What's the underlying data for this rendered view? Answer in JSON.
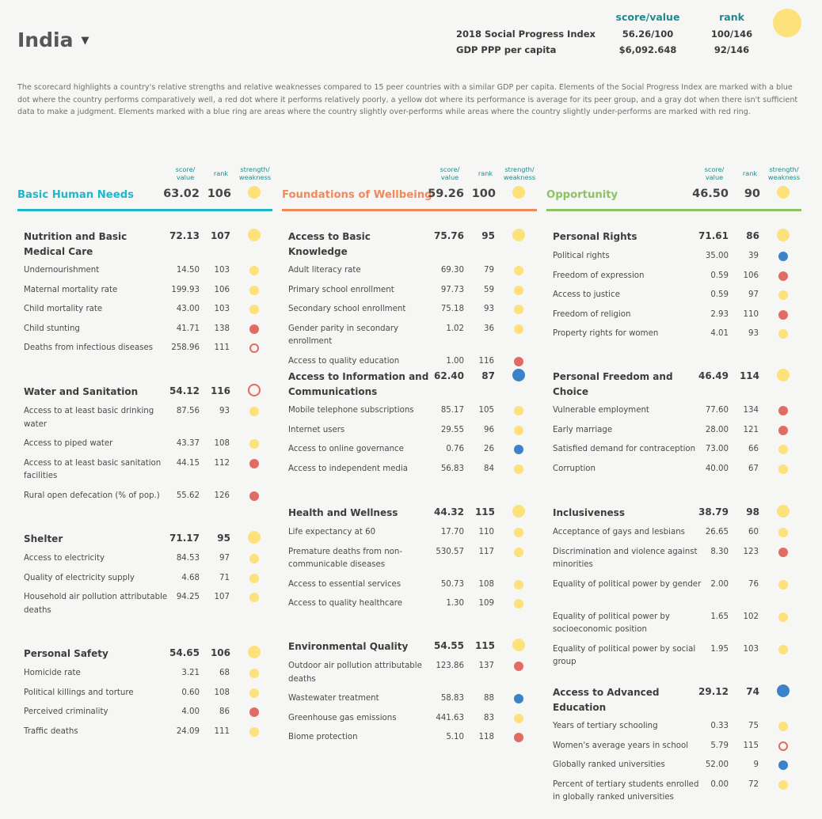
{
  "country": "India",
  "summary": {
    "head_value": "score/value",
    "head_rank": "rank",
    "rows": [
      {
        "label": "2018 Social Progress Index",
        "value": "56.26/100",
        "rank": "100/146"
      },
      {
        "label": "GDP PPP per capita",
        "value": "$6,092.648",
        "rank": "92/146"
      }
    ],
    "overall_color": "#fde17a"
  },
  "description": "The scorecard highlights a country's relative strengths and relative weaknesses compared to 15 peer countries with a similar GDP per capita. Elements of the Social Progress Index are marked with a blue dot where the country performs comparatively well, a red dot where it performs relatively poorly, a yellow dot where its performance is average for its peer group, and a gray dot when there isn't sufficient data to make a judgment. Elements marked with a blue ring are areas where the country slightly over-performs while areas where the country slightly under-performs are marked with red ring.",
  "colors": {
    "yellow": "#fde17a",
    "red": "#e06c64",
    "blue": "#3b82c9"
  },
  "mini_headers": {
    "sv1": "score/",
    "sv2": "value",
    "rank": "rank",
    "sw1": "strength/",
    "sw2": "weakness"
  },
  "dimensions": [
    {
      "name": "Basic Human Needs",
      "color": "#1fb8c9",
      "score": "63.02",
      "rank": "106",
      "status": "yellow",
      "components": [
        {
          "title": "Nutrition and Basic Medical Care",
          "score": "72.13",
          "rank": "107",
          "status": "yellow",
          "indicators": [
            {
              "name": "Undernourishment",
              "value": "14.50",
              "rank": "103",
              "status": "yellow"
            },
            {
              "name": "Maternal mortality rate",
              "value": "199.93",
              "rank": "106",
              "status": "yellow"
            },
            {
              "name": "Child mortality rate",
              "value": "43.00",
              "rank": "103",
              "status": "yellow"
            },
            {
              "name": "Child stunting",
              "value": "41.71",
              "rank": "138",
              "status": "red"
            },
            {
              "name": "Deaths from infectious diseases",
              "value": "258.96",
              "rank": "111",
              "status": "red-ring"
            }
          ]
        },
        {
          "title": "Water and Sanitation",
          "score": "54.12",
          "rank": "116",
          "status": "red-ring",
          "indicators": [
            {
              "name": "Access to at least basic drinking water",
              "value": "87.56",
              "rank": "93",
              "status": "yellow"
            },
            {
              "name": "Access to piped water",
              "value": "43.37",
              "rank": "108",
              "status": "yellow"
            },
            {
              "name": "Access to at least basic sanitation facilities",
              "value": "44.15",
              "rank": "112",
              "status": "red"
            },
            {
              "name": "Rural open defecation (% of pop.)",
              "value": "55.62",
              "rank": "126",
              "status": "red"
            }
          ]
        },
        {
          "title": "Shelter",
          "score": "71.17",
          "rank": "95",
          "status": "yellow",
          "indicators": [
            {
              "name": "Access to electricity",
              "value": "84.53",
              "rank": "97",
              "status": "yellow"
            },
            {
              "name": "Quality of electricity supply",
              "value": "4.68",
              "rank": "71",
              "status": "yellow"
            },
            {
              "name": "Household air pollution attributable deaths",
              "value": "94.25",
              "rank": "107",
              "status": "yellow"
            }
          ]
        },
        {
          "title": "Personal Safety",
          "score": "54.65",
          "rank": "106",
          "status": "yellow",
          "indicators": [
            {
              "name": "Homicide rate",
              "value": "3.21",
              "rank": "68",
              "status": "yellow"
            },
            {
              "name": "Political killings and torture",
              "value": "0.60",
              "rank": "108",
              "status": "yellow"
            },
            {
              "name": "Perceived criminality",
              "value": "4.00",
              "rank": "86",
              "status": "red"
            },
            {
              "name": "Traffic deaths",
              "value": "24.09",
              "rank": "111",
              "status": "yellow"
            }
          ]
        }
      ]
    },
    {
      "name": "Foundations of Wellbeing",
      "color": "#f08a5d",
      "score": "59.26",
      "rank": "100",
      "status": "yellow",
      "components": [
        {
          "title": "Access to Basic Knowledge",
          "score": "75.76",
          "rank": "95",
          "status": "yellow",
          "indicators": [
            {
              "name": "Adult literacy rate",
              "value": "69.30",
              "rank": "79",
              "status": "yellow"
            },
            {
              "name": "Primary school enrollment",
              "value": "97.73",
              "rank": "59",
              "status": "yellow"
            },
            {
              "name": "Secondary school enrollment",
              "value": "75.18",
              "rank": "93",
              "status": "yellow"
            },
            {
              "name": "Gender parity in secondary enrollment",
              "value": "1.02",
              "rank": "36",
              "status": "yellow"
            },
            {
              "name": "Access to quality education",
              "value": "1.00",
              "rank": "116",
              "status": "red"
            }
          ]
        },
        {
          "title": "Access to Information and Communications",
          "score": "62.40",
          "rank": "87",
          "status": "blue",
          "indicators": [
            {
              "name": "Mobile telephone subscriptions",
              "value": "85.17",
              "rank": "105",
              "status": "yellow"
            },
            {
              "name": "Internet users",
              "value": "29.55",
              "rank": "96",
              "status": "yellow"
            },
            {
              "name": "Access to online governance",
              "value": "0.76",
              "rank": "26",
              "status": "blue"
            },
            {
              "name": "Access to independent media",
              "value": "56.83",
              "rank": "84",
              "status": "yellow"
            }
          ]
        },
        {
          "title": "Health and Wellness",
          "score": "44.32",
          "rank": "115",
          "status": "yellow",
          "indicators": [
            {
              "name": "Life expectancy at 60",
              "value": "17.70",
              "rank": "110",
              "status": "yellow"
            },
            {
              "name": "Premature deaths from non-communicable diseases",
              "value": "530.57",
              "rank": "117",
              "status": "yellow"
            },
            {
              "name": "Access to essential services",
              "value": "50.73",
              "rank": "108",
              "status": "yellow"
            },
            {
              "name": "Access to quality healthcare",
              "value": "1.30",
              "rank": "109",
              "status": "yellow"
            }
          ]
        },
        {
          "title": "Environmental Quality",
          "score": "54.55",
          "rank": "115",
          "status": "yellow",
          "indicators": [
            {
              "name": "Outdoor air pollution attributable deaths",
              "value": "123.86",
              "rank": "137",
              "status": "red"
            },
            {
              "name": "Wastewater treatment",
              "value": "58.83",
              "rank": "88",
              "status": "blue"
            },
            {
              "name": "Greenhouse gas emissions",
              "value": "441.63",
              "rank": "83",
              "status": "yellow"
            },
            {
              "name": "Biome protection",
              "value": "5.10",
              "rank": "118",
              "status": "red"
            }
          ]
        }
      ]
    },
    {
      "name": "Opportunity",
      "color": "#8cc265",
      "score": "46.50",
      "rank": "90",
      "status": "yellow",
      "components": [
        {
          "title": "Personal Rights",
          "score": "71.61",
          "rank": "86",
          "status": "yellow",
          "indicators": [
            {
              "name": "Political rights",
              "value": "35.00",
              "rank": "39",
              "status": "blue"
            },
            {
              "name": "Freedom of expression",
              "value": "0.59",
              "rank": "106",
              "status": "red"
            },
            {
              "name": "Access to justice",
              "value": "0.59",
              "rank": "97",
              "status": "yellow"
            },
            {
              "name": "Freedom of religion",
              "value": "2.93",
              "rank": "110",
              "status": "red"
            },
            {
              "name": "Property rights for women",
              "value": "4.01",
              "rank": "93",
              "status": "yellow"
            }
          ]
        },
        {
          "title": "Personal Freedom and Choice",
          "score": "46.49",
          "rank": "114",
          "status": "yellow",
          "indicators": [
            {
              "name": "Vulnerable employment",
              "value": "77.60",
              "rank": "134",
              "status": "red"
            },
            {
              "name": "Early marriage",
              "value": "28.00",
              "rank": "121",
              "status": "red"
            },
            {
              "name": "Satisfied demand for contraception",
              "value": "73.00",
              "rank": "66",
              "status": "yellow"
            },
            {
              "name": "Corruption",
              "value": "40.00",
              "rank": "67",
              "status": "yellow"
            }
          ]
        },
        {
          "title": "Inclusiveness",
          "score": "38.79",
          "rank": "98",
          "status": "yellow",
          "indicators": [
            {
              "name": "Acceptance of gays and lesbians",
              "value": "26.65",
              "rank": "60",
              "status": "yellow"
            },
            {
              "name": "Discrimination and violence against minorities",
              "value": "8.30",
              "rank": "123",
              "status": "red"
            },
            {
              "name": "Equality of political power by gender",
              "value": "2.00",
              "rank": "76",
              "status": "yellow"
            },
            {
              "name": "Equality of political power by socioeconomic position",
              "value": "1.65",
              "rank": "102",
              "status": "yellow"
            },
            {
              "name": "Equality of political power by social group",
              "value": "1.95",
              "rank": "103",
              "status": "yellow"
            }
          ]
        },
        {
          "title": "Access to Advanced Education",
          "score": "29.12",
          "rank": "74",
          "status": "blue",
          "indicators": [
            {
              "name": "Years of tertiary schooling",
              "value": "0.33",
              "rank": "75",
              "status": "yellow"
            },
            {
              "name": "Women's average years in school",
              "value": "5.79",
              "rank": "115",
              "status": "red-ring"
            },
            {
              "name": "Globally ranked universities",
              "value": "52.00",
              "rank": "9",
              "status": "blue"
            },
            {
              "name": "Percent of tertiary students enrolled in globally ranked universities",
              "value": "0.00",
              "rank": "72",
              "status": "yellow"
            }
          ]
        }
      ]
    }
  ]
}
